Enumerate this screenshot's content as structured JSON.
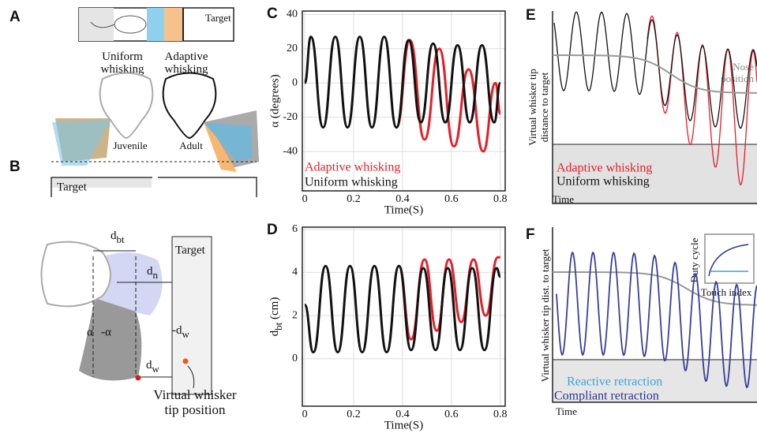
{
  "chart_data": [
    {
      "type": "line",
      "panel": "C",
      "ylabel": "α (degrees)",
      "xlabel": "Time(S)",
      "xlim": [
        -0.01,
        0.82
      ],
      "ylim": [
        -63,
        42
      ],
      "xticks": [
        0,
        0.2,
        0.4,
        0.6,
        0.8
      ],
      "yticks": [
        -40,
        -20,
        0,
        20,
        40
      ],
      "grid": true,
      "legend": "lower left",
      "series": [
        {
          "name": "Adaptive whisking",
          "color": "#e3202a",
          "x": [
            0.375,
            0.43,
            0.49,
            0.55,
            0.61,
            0.67,
            0.73,
            0.78,
            0.8
          ],
          "values": [
            -26,
            25,
            -33,
            20,
            -37,
            8,
            -40,
            0,
            -18
          ]
        },
        {
          "name": "Uniform whisking",
          "color": "#111111",
          "x": [
            0,
            0.025,
            0.075,
            0.125,
            0.175,
            0.225,
            0.275,
            0.325,
            0.375,
            0.425,
            0.475,
            0.525,
            0.575,
            0.625,
            0.675,
            0.725,
            0.775,
            0.8
          ],
          "values": [
            0,
            27,
            -26,
            27,
            -26,
            27,
            -26,
            27,
            -26,
            25,
            -23,
            23,
            -23,
            22,
            -23,
            22,
            -23,
            0
          ]
        }
      ]
    },
    {
      "type": "line",
      "panel": "D",
      "ylabel": {
        "main": "d",
        "sub": "bt",
        "unit": " (cm)"
      },
      "xlabel": "Time(S)",
      "xlim": [
        -0.01,
        0.82
      ],
      "ylim": [
        -2.2,
        6.1
      ],
      "xticks": [
        0,
        0.2,
        0.4,
        0.6,
        0.8
      ],
      "yticks": [
        0,
        2,
        4,
        6
      ],
      "grid": true,
      "series": [
        {
          "name": "Adaptive whisking",
          "color": "#e3202a",
          "x": [
            0.385,
            0.435,
            0.49,
            0.54,
            0.59,
            0.64,
            0.69,
            0.74,
            0.79,
            0.8
          ],
          "values": [
            4.3,
            0.9,
            4.6,
            1.3,
            4.6,
            1.7,
            4.6,
            2.0,
            4.7,
            4.7
          ]
        },
        {
          "name": "Uniform whisking",
          "color": "#111111",
          "x": [
            0,
            0.035,
            0.085,
            0.135,
            0.185,
            0.235,
            0.285,
            0.335,
            0.385,
            0.435,
            0.485,
            0.535,
            0.585,
            0.635,
            0.685,
            0.735,
            0.785,
            0.8
          ],
          "values": [
            2.5,
            0.3,
            4.3,
            0.3,
            4.3,
            0.3,
            4.3,
            0.3,
            4.3,
            0.4,
            4.2,
            0.4,
            4.2,
            0.4,
            4.2,
            0.4,
            4.2,
            3.8
          ]
        }
      ]
    }
  ],
  "panel_a": {
    "label": "A",
    "target": "Target",
    "uniform": [
      "Uniform",
      "whisking"
    ],
    "adaptive": [
      "Adaptive",
      "whisking"
    ],
    "juvenile": "Juvenile",
    "adult": "Adult"
  },
  "panel_b": {
    "label": "B",
    "target_bar": "Target",
    "target_box": "Target",
    "dbt": {
      "main": "d",
      "sub": "bt"
    },
    "dn": {
      "main": "d",
      "sub": "n"
    },
    "alpha": "α",
    "neg_alpha": "-α",
    "neg_dw": {
      "main": "-d",
      "sub": "w"
    },
    "dw": {
      "main": "d",
      "sub": "w"
    },
    "tip": [
      "Virtual whisker",
      "tip position"
    ]
  },
  "panel_e": {
    "label": "E",
    "ylabel": [
      "Virtual whisker tip",
      "distance to target"
    ],
    "nose": [
      "Nose",
      "position"
    ],
    "legend": [
      "Adaptive whisking",
      "Uniform whisking"
    ],
    "xlabel": "Time"
  },
  "panel_f": {
    "label": "F",
    "ylabel": "Virtual whisker tip dist. to target",
    "legend": [
      "Reactive retraction",
      "Compliant retraction"
    ],
    "xlabel": "Time",
    "inset_y": "Duty cycle",
    "inset_x": "Touch index"
  }
}
